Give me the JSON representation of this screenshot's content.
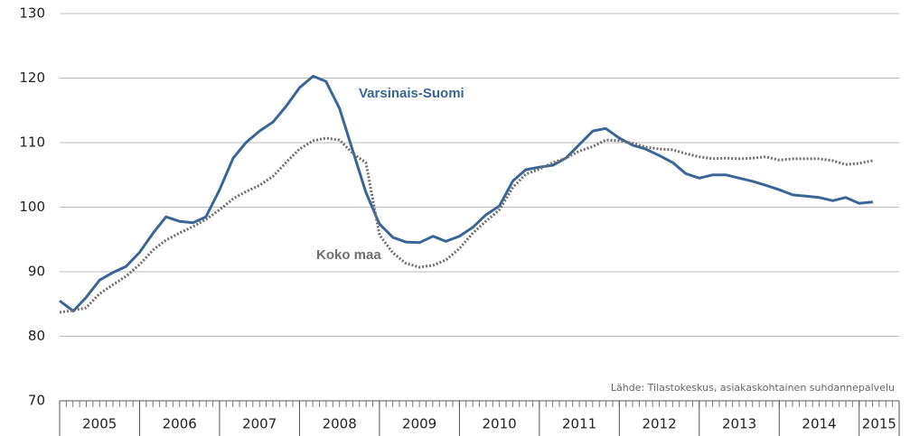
{
  "chart_data": {
    "type": "line",
    "annotations": [
      "Lähde: Tilastokeskus, asiakaskohtainen suhdannepalvelu"
    ],
    "x": [
      2005,
      2005.17,
      2005.33,
      2005.5,
      2005.67,
      2005.83,
      2006,
      2006.17,
      2006.33,
      2006.5,
      2006.67,
      2006.83,
      2007,
      2007.17,
      2007.33,
      2007.5,
      2007.67,
      2007.83,
      2008,
      2008.17,
      2008.33,
      2008.5,
      2008.67,
      2008.83,
      2009,
      2009.17,
      2009.33,
      2009.5,
      2009.67,
      2009.83,
      2010,
      2010.17,
      2010.33,
      2010.5,
      2010.67,
      2010.83,
      2011,
      2011.17,
      2011.33,
      2011.5,
      2011.67,
      2011.83,
      2012,
      2012.17,
      2012.33,
      2012.5,
      2012.67,
      2012.83,
      2013,
      2013.17,
      2013.33,
      2013.5,
      2013.67,
      2013.83,
      2014,
      2014.17,
      2014.33,
      2014.5,
      2014.67,
      2014.83,
      2015,
      2015.17
    ],
    "series": [
      {
        "name": "Varsinais-Suomi",
        "color": "#3b6594",
        "style": "solid",
        "values": [
          85.5,
          83.9,
          86,
          88.7,
          89.9,
          90.8,
          93,
          96,
          98.5,
          97.8,
          97.6,
          98.5,
          102.7,
          107.6,
          110,
          111.8,
          113.2,
          115.6,
          118.5,
          120.3,
          119.5,
          115.3,
          108.6,
          102.3,
          97.4,
          95.3,
          94.6,
          94.5,
          95.5,
          94.7,
          95.5,
          96.9,
          98.8,
          100.2,
          104.1,
          105.8,
          106.2,
          106.5,
          107.6,
          109.7,
          111.8,
          112.2,
          110.7,
          109.6,
          109,
          108,
          106.9,
          105.2,
          104.5,
          105,
          105,
          104.5,
          104,
          103.4,
          102.7,
          101.9,
          101.7,
          101.5,
          101,
          101.5,
          100.6,
          100.8
        ]
      },
      {
        "name": "Koko maa",
        "color": "#6f6f6f",
        "style": "dotted",
        "values": [
          83.7,
          84,
          84.4,
          86.6,
          88,
          89.3,
          91.1,
          93.4,
          94.9,
          96,
          97,
          98.1,
          99.6,
          101.3,
          102.4,
          103.4,
          104.8,
          106.9,
          109,
          110.3,
          110.7,
          110.4,
          108.3,
          106.9,
          95.7,
          92.9,
          91.3,
          90.7,
          91,
          91.8,
          93.6,
          96,
          97.8,
          99.6,
          103.1,
          105.1,
          105.9,
          106.9,
          107.6,
          108.7,
          109.4,
          110.4,
          110.3,
          109.9,
          109.3,
          109,
          108.9,
          108.3,
          107.8,
          107.5,
          107.6,
          107.5,
          107.6,
          107.8,
          107.3,
          107.5,
          107.5,
          107.5,
          107.2,
          106.6,
          106.8,
          107.2
        ]
      }
    ],
    "xlim": [
      2005,
      2015.5
    ],
    "xticks": [
      2005,
      2006,
      2007,
      2008,
      2009,
      2010,
      2011,
      2012,
      2013,
      2014,
      2015
    ],
    "ylim": [
      70,
      130
    ],
    "yticks": [
      70,
      80,
      90,
      100,
      110,
      120,
      130
    ],
    "grid": true
  }
}
